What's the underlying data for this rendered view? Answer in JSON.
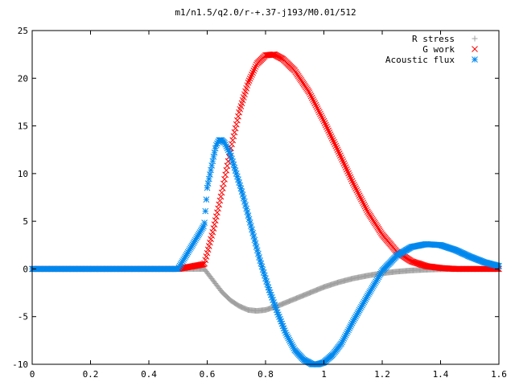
{
  "chart_data": {
    "type": "scatter",
    "title": "m1/n1.5/q2.0/r-+.37-j193/M0.01/512",
    "xlabel": "",
    "ylabel": "",
    "xlim": [
      0,
      1.6
    ],
    "ylim": [
      -10,
      25
    ],
    "x_ticks": [
      "0",
      "0.2",
      "0.4",
      "0.6",
      "0.8",
      "1",
      "1.2",
      "1.4",
      "1.6"
    ],
    "y_ticks": [
      "-10",
      "-5",
      "0",
      "5",
      "10",
      "15",
      "20",
      "25"
    ],
    "grid": false,
    "legend_position": "top-right",
    "series": [
      {
        "name": "R stress",
        "marker": "+",
        "color": "#a0a0a0",
        "x": [
          0,
          0.1,
          0.2,
          0.3,
          0.4,
          0.5,
          0.59,
          0.62,
          0.65,
          0.68,
          0.71,
          0.74,
          0.77,
          0.8,
          0.84,
          0.88,
          0.92,
          0.96,
          1.0,
          1.05,
          1.1,
          1.15,
          1.2,
          1.25,
          1.3,
          1.35,
          1.4,
          1.45,
          1.5,
          1.55,
          1.6
        ],
        "y": [
          0,
          0,
          0,
          0,
          0,
          0,
          0,
          -1.2,
          -2.4,
          -3.3,
          -3.9,
          -4.3,
          -4.4,
          -4.3,
          -3.9,
          -3.4,
          -2.9,
          -2.4,
          -1.9,
          -1.4,
          -1.0,
          -0.7,
          -0.45,
          -0.28,
          -0.16,
          -0.08,
          -0.03,
          0,
          0,
          0,
          0
        ]
      },
      {
        "name": "G work",
        "marker": "x",
        "color": "#ff0000",
        "x": [
          0,
          0.1,
          0.2,
          0.3,
          0.4,
          0.5,
          0.59,
          0.62,
          0.65,
          0.68,
          0.71,
          0.74,
          0.77,
          0.8,
          0.83,
          0.86,
          0.9,
          0.95,
          1.0,
          1.05,
          1.1,
          1.15,
          1.2,
          1.25,
          1.3,
          1.35,
          1.4,
          1.45,
          1.5,
          1.55,
          1.6
        ],
        "y": [
          0,
          0,
          0,
          0,
          0,
          0,
          0.5,
          4.0,
          8.0,
          12.5,
          16.5,
          19.5,
          21.5,
          22.4,
          22.5,
          22.0,
          20.8,
          18.5,
          15.5,
          12.3,
          9.0,
          6.0,
          3.6,
          1.8,
          0.8,
          0.3,
          0.1,
          0,
          0,
          0,
          0
        ]
      },
      {
        "name": "Acoustic flux",
        "marker": "*",
        "color": "#0088ee",
        "x": [
          0,
          0.1,
          0.2,
          0.3,
          0.4,
          0.5,
          0.59,
          0.6,
          0.61,
          0.62,
          0.63,
          0.64,
          0.65,
          0.66,
          0.68,
          0.7,
          0.72,
          0.75,
          0.78,
          0.81,
          0.84,
          0.87,
          0.9,
          0.93,
          0.96,
          0.98,
          1.0,
          1.03,
          1.06,
          1.1,
          1.15,
          1.2,
          1.25,
          1.3,
          1.35,
          1.4,
          1.45,
          1.5,
          1.55,
          1.6
        ],
        "y": [
          0,
          0,
          0,
          0,
          0,
          0,
          4.6,
          8.5,
          10.0,
          11.5,
          12.9,
          13.5,
          13.5,
          13.2,
          12.0,
          10.0,
          8.0,
          4.5,
          1.0,
          -2.0,
          -4.5,
          -6.8,
          -8.5,
          -9.5,
          -10.0,
          -10.0,
          -9.8,
          -9.0,
          -7.8,
          -5.5,
          -2.8,
          -0.2,
          1.4,
          2.3,
          2.6,
          2.5,
          2.0,
          1.3,
          0.7,
          0.3
        ]
      }
    ]
  }
}
